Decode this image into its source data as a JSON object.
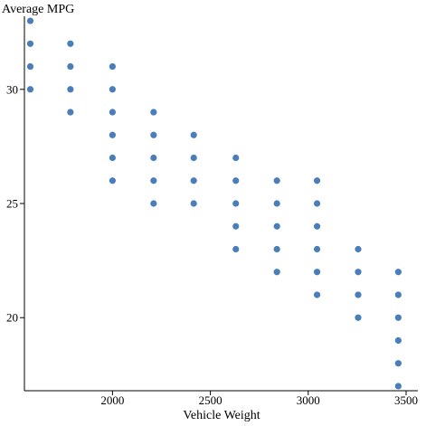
{
  "chart_data": {
    "type": "scatter",
    "title": "",
    "xlabel": "Vehicle Weight",
    "ylabel": "Average MPG",
    "xlim": [
      1550,
      3560
    ],
    "ylim": [
      16.8,
      33.2
    ],
    "x_ticks": [
      2000,
      2500,
      3000,
      3500
    ],
    "y_ticks": [
      20,
      25,
      30
    ],
    "grid": false,
    "point_color": "#4a7ebb",
    "series": [
      {
        "points": [
          {
            "x": 1580,
            "y": 30
          },
          {
            "x": 1580,
            "y": 31
          },
          {
            "x": 1580,
            "y": 32
          },
          {
            "x": 1580,
            "y": 33
          },
          {
            "x": 1785,
            "y": 29
          },
          {
            "x": 1785,
            "y": 30
          },
          {
            "x": 1785,
            "y": 31
          },
          {
            "x": 1785,
            "y": 32
          },
          {
            "x": 2000,
            "y": 26
          },
          {
            "x": 2000,
            "y": 27
          },
          {
            "x": 2000,
            "y": 28
          },
          {
            "x": 2000,
            "y": 29
          },
          {
            "x": 2000,
            "y": 30
          },
          {
            "x": 2000,
            "y": 31
          },
          {
            "x": 2210,
            "y": 25
          },
          {
            "x": 2210,
            "y": 26
          },
          {
            "x": 2210,
            "y": 27
          },
          {
            "x": 2210,
            "y": 28
          },
          {
            "x": 2210,
            "y": 29
          },
          {
            "x": 2415,
            "y": 25
          },
          {
            "x": 2415,
            "y": 26
          },
          {
            "x": 2415,
            "y": 27
          },
          {
            "x": 2415,
            "y": 28
          },
          {
            "x": 2630,
            "y": 23
          },
          {
            "x": 2630,
            "y": 24
          },
          {
            "x": 2630,
            "y": 25
          },
          {
            "x": 2630,
            "y": 26
          },
          {
            "x": 2630,
            "y": 27
          },
          {
            "x": 2840,
            "y": 22
          },
          {
            "x": 2840,
            "y": 23
          },
          {
            "x": 2840,
            "y": 24
          },
          {
            "x": 2840,
            "y": 25
          },
          {
            "x": 2840,
            "y": 26
          },
          {
            "x": 3045,
            "y": 21
          },
          {
            "x": 3045,
            "y": 22
          },
          {
            "x": 3045,
            "y": 23
          },
          {
            "x": 3045,
            "y": 24
          },
          {
            "x": 3045,
            "y": 25
          },
          {
            "x": 3045,
            "y": 26
          },
          {
            "x": 3255,
            "y": 20
          },
          {
            "x": 3255,
            "y": 21
          },
          {
            "x": 3255,
            "y": 22
          },
          {
            "x": 3255,
            "y": 23
          },
          {
            "x": 3460,
            "y": 17
          },
          {
            "x": 3460,
            "y": 18
          },
          {
            "x": 3460,
            "y": 19
          },
          {
            "x": 3460,
            "y": 20
          },
          {
            "x": 3460,
            "y": 21
          },
          {
            "x": 3460,
            "y": 22
          }
        ]
      }
    ]
  }
}
